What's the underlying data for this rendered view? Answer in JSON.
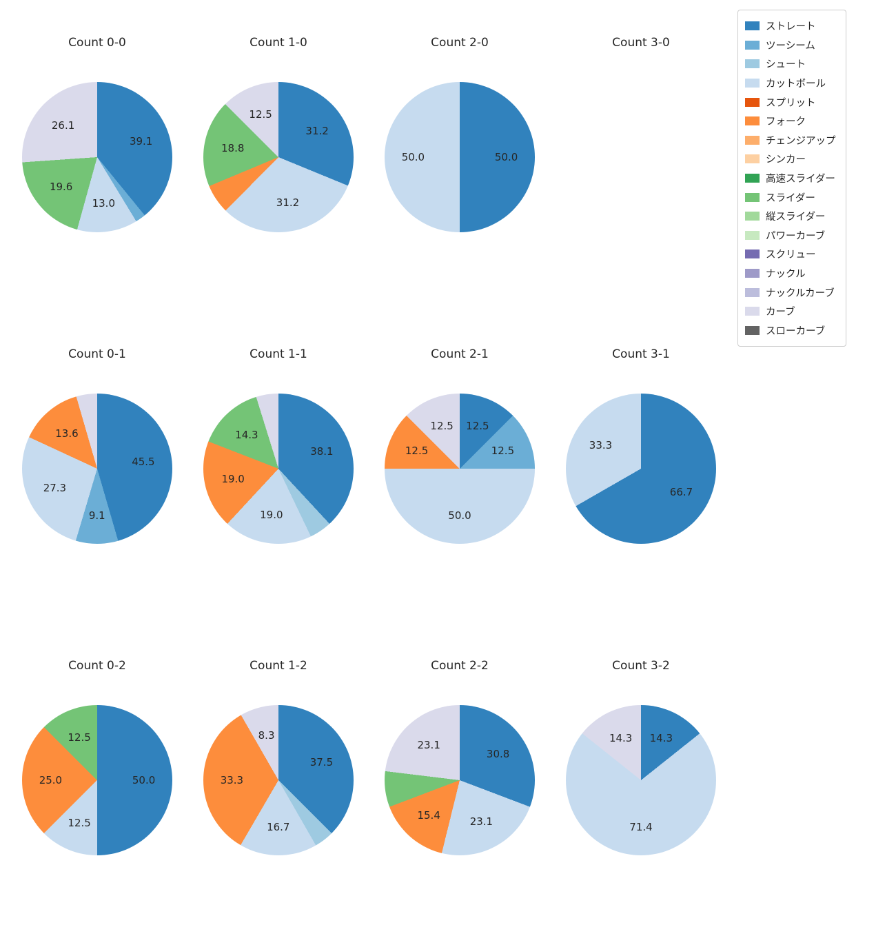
{
  "page": {
    "background": "#ffffff",
    "text_color": "#262626"
  },
  "legend": {
    "items": [
      {
        "label": "ストレート",
        "color": "#3182bd"
      },
      {
        "label": "ツーシーム",
        "color": "#6baed6"
      },
      {
        "label": "シュート",
        "color": "#9ecae1"
      },
      {
        "label": "カットボール",
        "color": "#c6dbef"
      },
      {
        "label": "スプリット",
        "color": "#e6550d"
      },
      {
        "label": "フォーク",
        "color": "#fd8d3c"
      },
      {
        "label": "チェンジアップ",
        "color": "#fdae6b"
      },
      {
        "label": "シンカー",
        "color": "#fdd0a2"
      },
      {
        "label": "高速スライダー",
        "color": "#31a354"
      },
      {
        "label": "スライダー",
        "color": "#74c476"
      },
      {
        "label": "縦スライダー",
        "color": "#a1d99b"
      },
      {
        "label": "パワーカーブ",
        "color": "#c7e9c0"
      },
      {
        "label": "スクリュー",
        "color": "#756bb1"
      },
      {
        "label": "ナックル",
        "color": "#9e9ac8"
      },
      {
        "label": "ナックルカーブ",
        "color": "#bcbddc"
      },
      {
        "label": "カーブ",
        "color": "#dadaeb"
      },
      {
        "label": "スローカーブ",
        "color": "#636363"
      }
    ]
  },
  "chart_data": [
    {
      "type": "pie",
      "title": "Count 0-0",
      "slices": [
        {
          "name": "ストレート",
          "value": 39.1,
          "label": "39.1"
        },
        {
          "name": "ツーシーム",
          "value": 2.2,
          "label": ""
        },
        {
          "name": "カットボール",
          "value": 13.0,
          "label": "13.0"
        },
        {
          "name": "スライダー",
          "value": 19.6,
          "label": "19.6"
        },
        {
          "name": "カーブ",
          "value": 26.1,
          "label": "26.1"
        }
      ]
    },
    {
      "type": "pie",
      "title": "Count 1-0",
      "slices": [
        {
          "name": "ストレート",
          "value": 31.2,
          "label": "31.2"
        },
        {
          "name": "カットボール",
          "value": 31.2,
          "label": "31.2"
        },
        {
          "name": "フォーク",
          "value": 6.3,
          "label": ""
        },
        {
          "name": "スライダー",
          "value": 18.8,
          "label": "18.8"
        },
        {
          "name": "カーブ",
          "value": 12.5,
          "label": "12.5"
        }
      ]
    },
    {
      "type": "pie",
      "title": "Count 2-0",
      "slices": [
        {
          "name": "ストレート",
          "value": 50.0,
          "label": "50.0"
        },
        {
          "name": "カットボール",
          "value": 50.0,
          "label": "50.0"
        }
      ]
    },
    {
      "type": "pie",
      "title": "Count 3-0",
      "slices": []
    },
    {
      "type": "pie",
      "title": "Count 0-1",
      "slices": [
        {
          "name": "ストレート",
          "value": 45.5,
          "label": "45.5"
        },
        {
          "name": "ツーシーム",
          "value": 9.1,
          "label": "9.1"
        },
        {
          "name": "カットボール",
          "value": 27.3,
          "label": "27.3"
        },
        {
          "name": "フォーク",
          "value": 13.6,
          "label": "13.6"
        },
        {
          "name": "カーブ",
          "value": 4.5,
          "label": ""
        }
      ]
    },
    {
      "type": "pie",
      "title": "Count 1-1",
      "slices": [
        {
          "name": "ストレート",
          "value": 38.1,
          "label": "38.1"
        },
        {
          "name": "シュート",
          "value": 4.8,
          "label": ""
        },
        {
          "name": "カットボール",
          "value": 19.0,
          "label": "19.0"
        },
        {
          "name": "フォーク",
          "value": 19.0,
          "label": "19.0"
        },
        {
          "name": "スライダー",
          "value": 14.3,
          "label": "14.3"
        },
        {
          "name": "カーブ",
          "value": 4.8,
          "label": ""
        }
      ]
    },
    {
      "type": "pie",
      "title": "Count 2-1",
      "slices": [
        {
          "name": "ストレート",
          "value": 12.5,
          "label": "12.5"
        },
        {
          "name": "ツーシーム",
          "value": 12.5,
          "label": "12.5"
        },
        {
          "name": "カットボール",
          "value": 50.0,
          "label": "50.0"
        },
        {
          "name": "フォーク",
          "value": 12.5,
          "label": "12.5"
        },
        {
          "name": "カーブ",
          "value": 12.5,
          "label": "12.5"
        }
      ]
    },
    {
      "type": "pie",
      "title": "Count 3-1",
      "slices": [
        {
          "name": "ストレート",
          "value": 66.7,
          "label": "66.7"
        },
        {
          "name": "カットボール",
          "value": 33.3,
          "label": "33.3"
        }
      ]
    },
    {
      "type": "pie",
      "title": "Count 0-2",
      "slices": [
        {
          "name": "ストレート",
          "value": 50.0,
          "label": "50.0"
        },
        {
          "name": "カットボール",
          "value": 12.5,
          "label": "12.5"
        },
        {
          "name": "フォーク",
          "value": 25.0,
          "label": "25.0"
        },
        {
          "name": "スライダー",
          "value": 12.5,
          "label": "12.5"
        }
      ]
    },
    {
      "type": "pie",
      "title": "Count 1-2",
      "slices": [
        {
          "name": "ストレート",
          "value": 37.5,
          "label": "37.5"
        },
        {
          "name": "シュート",
          "value": 4.2,
          "label": ""
        },
        {
          "name": "カットボール",
          "value": 16.7,
          "label": "16.7"
        },
        {
          "name": "フォーク",
          "value": 33.3,
          "label": "33.3"
        },
        {
          "name": "カーブ",
          "value": 8.3,
          "label": "8.3"
        }
      ]
    },
    {
      "type": "pie",
      "title": "Count 2-2",
      "slices": [
        {
          "name": "ストレート",
          "value": 30.8,
          "label": "30.8"
        },
        {
          "name": "カットボール",
          "value": 23.1,
          "label": "23.1"
        },
        {
          "name": "フォーク",
          "value": 15.4,
          "label": "15.4"
        },
        {
          "name": "スライダー",
          "value": 7.7,
          "label": ""
        },
        {
          "name": "カーブ",
          "value": 23.1,
          "label": "23.1"
        }
      ]
    },
    {
      "type": "pie",
      "title": "Count 3-2",
      "slices": [
        {
          "name": "ストレート",
          "value": 14.3,
          "label": "14.3"
        },
        {
          "name": "カットボール",
          "value": 71.4,
          "label": "71.4"
        },
        {
          "name": "カーブ",
          "value": 14.3,
          "label": "14.3"
        }
      ]
    }
  ]
}
